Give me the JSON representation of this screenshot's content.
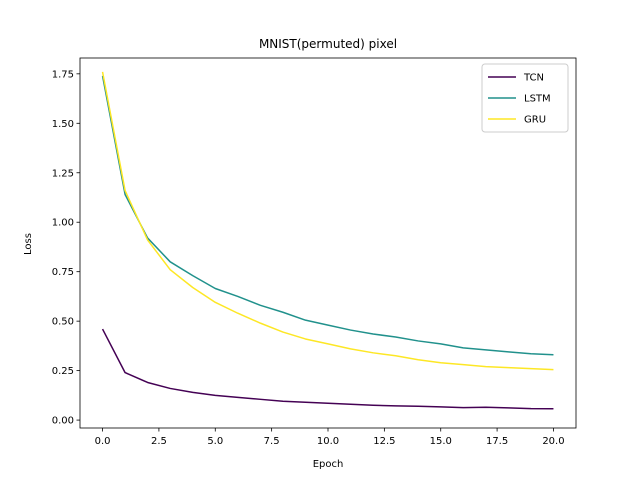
{
  "chart_data": {
    "type": "line",
    "title": "MNIST(permuted) pixel",
    "xlabel": "Epoch",
    "ylabel": "Loss",
    "xlim": [
      -1.0,
      21.0
    ],
    "ylim": [
      -0.04,
      1.83
    ],
    "xticks": [
      0.0,
      2.5,
      5.0,
      7.5,
      10.0,
      12.5,
      15.0,
      17.5,
      20.0
    ],
    "xtick_labels": [
      "0.0",
      "2.5",
      "5.0",
      "7.5",
      "10.0",
      "12.5",
      "15.0",
      "17.5",
      "20.0"
    ],
    "yticks": [
      0.0,
      0.25,
      0.5,
      0.75,
      1.0,
      1.25,
      1.5,
      1.75
    ],
    "ytick_labels": [
      "0.00",
      "0.25",
      "0.50",
      "0.75",
      "1.00",
      "1.25",
      "1.50",
      "1.75"
    ],
    "grid": false,
    "legend_position": "top-right",
    "x": [
      0,
      1,
      2,
      3,
      4,
      5,
      6,
      7,
      8,
      9,
      10,
      11,
      12,
      13,
      14,
      15,
      16,
      17,
      18,
      19,
      20
    ],
    "series": [
      {
        "name": "TCN",
        "color": "#440154",
        "values": [
          0.46,
          0.24,
          0.19,
          0.16,
          0.14,
          0.125,
          0.115,
          0.105,
          0.095,
          0.09,
          0.085,
          0.08,
          0.075,
          0.072,
          0.07,
          0.067,
          0.063,
          0.065,
          0.062,
          0.058,
          0.057
        ]
      },
      {
        "name": "LSTM",
        "color": "#21918c",
        "values": [
          1.74,
          1.14,
          0.92,
          0.8,
          0.73,
          0.665,
          0.625,
          0.58,
          0.545,
          0.505,
          0.48,
          0.455,
          0.435,
          0.42,
          0.4,
          0.385,
          0.365,
          0.355,
          0.345,
          0.335,
          0.33
        ]
      },
      {
        "name": "GRU",
        "color": "#fde725",
        "values": [
          1.76,
          1.16,
          0.91,
          0.76,
          0.67,
          0.595,
          0.54,
          0.49,
          0.445,
          0.41,
          0.385,
          0.36,
          0.34,
          0.325,
          0.305,
          0.29,
          0.28,
          0.27,
          0.265,
          0.26,
          0.255
        ]
      }
    ]
  }
}
